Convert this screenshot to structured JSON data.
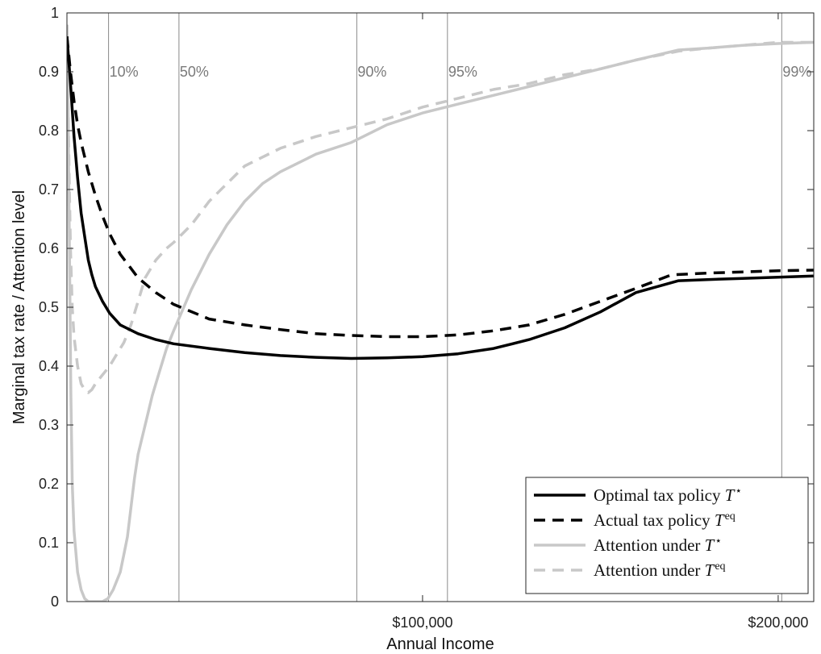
{
  "chart_data": {
    "type": "line",
    "xlabel": "Annual Income",
    "ylabel": "Marginal tax rate / Attention level",
    "xlim": [
      0,
      210000
    ],
    "ylim": [
      0,
      1
    ],
    "x_ticks": [
      {
        "value": 100000,
        "label": "$100,000"
      },
      {
        "value": 200000,
        "label": "$200,000"
      }
    ],
    "y_ticks": [
      {
        "value": 0,
        "label": "0"
      },
      {
        "value": 0.1,
        "label": "0.1"
      },
      {
        "value": 0.2,
        "label": "0.2"
      },
      {
        "value": 0.3,
        "label": "0.3"
      },
      {
        "value": 0.4,
        "label": "0.4"
      },
      {
        "value": 0.5,
        "label": "0.5"
      },
      {
        "value": 0.6,
        "label": "0.6"
      },
      {
        "value": 0.7,
        "label": "0.7"
      },
      {
        "value": 0.8,
        "label": "0.8"
      },
      {
        "value": 0.9,
        "label": "0.9"
      },
      {
        "value": 1,
        "label": "1"
      }
    ],
    "percentile_lines": [
      {
        "label": "10%",
        "x": 11700
      },
      {
        "label": "50%",
        "x": 31500
      },
      {
        "label": "90%",
        "x": 81500
      },
      {
        "label": "95%",
        "x": 107000
      },
      {
        "label": "99%",
        "x": 201000
      }
    ],
    "legend_position": "bottom-right",
    "grid": false,
    "series": [
      {
        "key": "optimal_tax",
        "name": "Optimal tax policy",
        "symbol": "T",
        "superscript": "⋆",
        "color": "#000000",
        "dash": "solid",
        "points": [
          [
            0,
            0.96
          ],
          [
            500,
            0.92
          ],
          [
            1000,
            0.88
          ],
          [
            2000,
            0.79
          ],
          [
            3000,
            0.72
          ],
          [
            4000,
            0.66
          ],
          [
            5000,
            0.62
          ],
          [
            6000,
            0.58
          ],
          [
            7000,
            0.555
          ],
          [
            8000,
            0.535
          ],
          [
            10000,
            0.51
          ],
          [
            12000,
            0.49
          ],
          [
            15000,
            0.47
          ],
          [
            20000,
            0.455
          ],
          [
            25000,
            0.445
          ],
          [
            30000,
            0.438
          ],
          [
            40000,
            0.43
          ],
          [
            50000,
            0.423
          ],
          [
            60000,
            0.418
          ],
          [
            70000,
            0.415
          ],
          [
            80000,
            0.413
          ],
          [
            90000,
            0.414
          ],
          [
            100000,
            0.416
          ],
          [
            110000,
            0.421
          ],
          [
            120000,
            0.43
          ],
          [
            130000,
            0.445
          ],
          [
            140000,
            0.465
          ],
          [
            150000,
            0.492
          ],
          [
            160000,
            0.525
          ],
          [
            172000,
            0.545
          ],
          [
            180000,
            0.547
          ],
          [
            190000,
            0.549
          ],
          [
            200000,
            0.551
          ],
          [
            210000,
            0.553
          ]
        ]
      },
      {
        "key": "actual_tax",
        "name": "Actual tax policy",
        "symbol": "T",
        "superscript": "eq",
        "color": "#000000",
        "dash": "dashed",
        "points": [
          [
            0,
            0.96
          ],
          [
            1000,
            0.9
          ],
          [
            2000,
            0.85
          ],
          [
            3000,
            0.81
          ],
          [
            4000,
            0.78
          ],
          [
            6000,
            0.73
          ],
          [
            8000,
            0.69
          ],
          [
            10000,
            0.655
          ],
          [
            12000,
            0.625
          ],
          [
            15000,
            0.59
          ],
          [
            20000,
            0.55
          ],
          [
            25000,
            0.525
          ],
          [
            30000,
            0.505
          ],
          [
            40000,
            0.48
          ],
          [
            50000,
            0.47
          ],
          [
            60000,
            0.462
          ],
          [
            70000,
            0.455
          ],
          [
            80000,
            0.452
          ],
          [
            90000,
            0.45
          ],
          [
            100000,
            0.45
          ],
          [
            110000,
            0.453
          ],
          [
            120000,
            0.46
          ],
          [
            130000,
            0.47
          ],
          [
            140000,
            0.488
          ],
          [
            150000,
            0.51
          ],
          [
            160000,
            0.532
          ],
          [
            170000,
            0.555
          ],
          [
            180000,
            0.558
          ],
          [
            190000,
            0.56
          ],
          [
            200000,
            0.562
          ],
          [
            210000,
            0.563
          ]
        ]
      },
      {
        "key": "attention_optimal",
        "name": "Attention under",
        "symbol": "T",
        "superscript": "⋆",
        "color": "#c8c8c8",
        "dash": "solid",
        "points": [
          [
            0,
            0.98
          ],
          [
            300,
            0.85
          ],
          [
            700,
            0.6
          ],
          [
            1100,
            0.35
          ],
          [
            1500,
            0.2
          ],
          [
            2000,
            0.12
          ],
          [
            3000,
            0.05
          ],
          [
            4000,
            0.02
          ],
          [
            5000,
            0.005
          ],
          [
            6000,
            0
          ],
          [
            10000,
            0
          ],
          [
            11500,
            0.005
          ],
          [
            13000,
            0.02
          ],
          [
            15000,
            0.05
          ],
          [
            16000,
            0.08
          ],
          [
            17000,
            0.11
          ],
          [
            18000,
            0.16
          ],
          [
            19000,
            0.21
          ],
          [
            20000,
            0.25
          ],
          [
            22000,
            0.3
          ],
          [
            24000,
            0.35
          ],
          [
            26000,
            0.39
          ],
          [
            28000,
            0.43
          ],
          [
            30000,
            0.46
          ],
          [
            35000,
            0.53
          ],
          [
            40000,
            0.59
          ],
          [
            45000,
            0.64
          ],
          [
            50000,
            0.68
          ],
          [
            55000,
            0.71
          ],
          [
            60000,
            0.73
          ],
          [
            70000,
            0.76
          ],
          [
            80000,
            0.78
          ],
          [
            90000,
            0.81
          ],
          [
            100000,
            0.83
          ],
          [
            110000,
            0.845
          ],
          [
            120000,
            0.86
          ],
          [
            130000,
            0.875
          ],
          [
            140000,
            0.89
          ],
          [
            150000,
            0.905
          ],
          [
            160000,
            0.92
          ],
          [
            172000,
            0.937
          ],
          [
            180000,
            0.94
          ],
          [
            190000,
            0.945
          ],
          [
            200000,
            0.948
          ],
          [
            210000,
            0.95
          ]
        ]
      },
      {
        "key": "attention_actual",
        "name": "Attention under",
        "symbol": "T",
        "superscript": "eq",
        "color": "#c8c8c8",
        "dash": "dashed",
        "points": [
          [
            0,
            0.98
          ],
          [
            300,
            0.85
          ],
          [
            700,
            0.7
          ],
          [
            1000,
            0.6
          ],
          [
            1500,
            0.5
          ],
          [
            2000,
            0.45
          ],
          [
            3000,
            0.4
          ],
          [
            4000,
            0.37
          ],
          [
            5000,
            0.36
          ],
          [
            6000,
            0.355
          ],
          [
            7000,
            0.36
          ],
          [
            8000,
            0.37
          ],
          [
            10000,
            0.385
          ],
          [
            12000,
            0.4
          ],
          [
            14000,
            0.42
          ],
          [
            16000,
            0.44
          ],
          [
            18000,
            0.47
          ],
          [
            20000,
            0.51
          ],
          [
            22000,
            0.55
          ],
          [
            25000,
            0.58
          ],
          [
            28000,
            0.6
          ],
          [
            30000,
            0.61
          ],
          [
            35000,
            0.64
          ],
          [
            40000,
            0.68
          ],
          [
            45000,
            0.71
          ],
          [
            50000,
            0.74
          ],
          [
            60000,
            0.77
          ],
          [
            70000,
            0.79
          ],
          [
            80000,
            0.805
          ],
          [
            90000,
            0.82
          ],
          [
            100000,
            0.84
          ],
          [
            110000,
            0.855
          ],
          [
            120000,
            0.87
          ],
          [
            130000,
            0.88
          ],
          [
            140000,
            0.895
          ],
          [
            150000,
            0.905
          ],
          [
            160000,
            0.92
          ],
          [
            172000,
            0.935
          ],
          [
            180000,
            0.94
          ],
          [
            190000,
            0.945
          ],
          [
            200000,
            0.95
          ],
          [
            210000,
            0.95
          ]
        ]
      }
    ]
  }
}
